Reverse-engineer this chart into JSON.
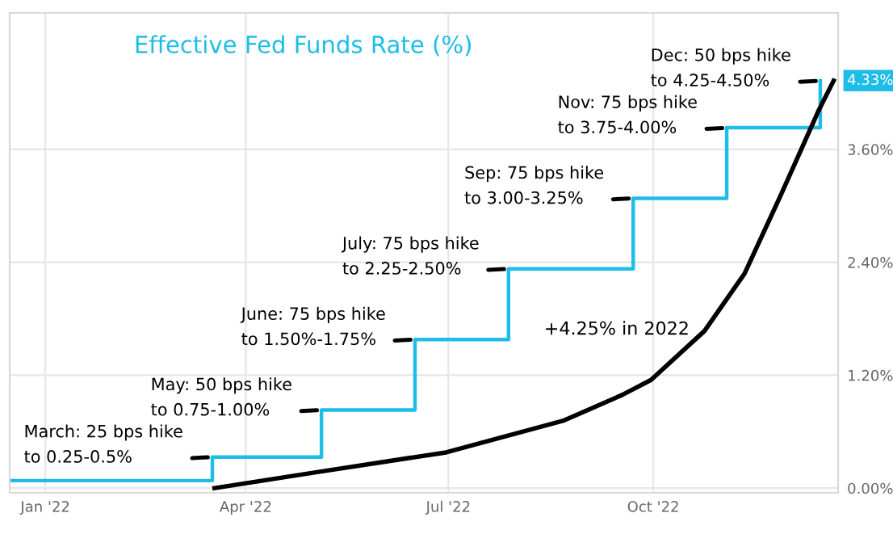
{
  "chart_data": {
    "type": "step",
    "title": "Effective Fed Funds Rate (%)",
    "series": [
      {
        "color": "#1ebde8",
        "x": [
          "2021-12-16",
          "2022-03-17",
          "2022-05-05",
          "2022-06-16",
          "2022-07-28",
          "2022-09-22",
          "2022-11-03",
          "2022-12-15"
        ],
        "values": [
          0.08,
          0.33,
          0.83,
          1.58,
          2.33,
          3.08,
          3.83,
          4.33
        ]
      },
      {
        "type": "line",
        "color": "#000000",
        "x": [
          "2022-03-18",
          "2022-05-03",
          "2022-06-30",
          "2022-08-22",
          "2022-09-17",
          "2022-09-30",
          "2022-10-24",
          "2022-11-11",
          "2022-11-27",
          "2022-12-14",
          "2022-12-21"
        ],
        "values": [
          0.0,
          0.17,
          0.38,
          0.72,
          0.99,
          1.15,
          1.67,
          2.28,
          3.1,
          4.0,
          4.33
        ]
      }
    ],
    "annotations": [
      {
        "text": "March: 25 bps hike\nto 0.25-0.5%",
        "x": "2022-03-17",
        "y": 0.33
      },
      {
        "text": "May: 50 bps hike\nto 0.75-1.00%",
        "x": "2022-05-05",
        "y": 0.83
      },
      {
        "text": "June: 75 bps hike\nto 1.50%-1.75%",
        "x": "2022-06-16",
        "y": 1.58
      },
      {
        "text": "July: 75 bps hike\nto 2.25-2.50%",
        "x": "2022-07-28",
        "y": 2.33
      },
      {
        "text": "Sep: 75 bps hike\nto 3.00-3.25%",
        "x": "2022-09-22",
        "y": 3.08
      },
      {
        "text": "Nov: 75 bps hike\nto 3.75-4.00%",
        "x": "2022-11-03",
        "y": 3.83
      },
      {
        "text": "Dec: 50 bps hike\nto 4.25-4.50%",
        "x": "2022-12-15",
        "y": 4.33
      },
      "+4.25% in 2022",
      {
        "text": "4.33%",
        "x": "2022-12-15",
        "y": 4.33
      }
    ],
    "xlim": [
      "2021-12-16",
      "2022-12-23"
    ],
    "xticks": [
      {
        "value": "2022-01-01",
        "label": "Jan '22"
      },
      {
        "value": "2022-04-01",
        "label": "Apr '22"
      },
      {
        "value": "2022-07-01",
        "label": "Jul '22"
      },
      {
        "value": "2022-10-01",
        "label": "Oct '22"
      }
    ],
    "ylim": [
      -0.05,
      5.05
    ],
    "yticks": [
      {
        "value": 0,
        "label": "0.00%"
      },
      {
        "value": 1.2,
        "label": "1.20%"
      },
      {
        "value": 2.4,
        "label": "2.40%"
      },
      {
        "value": 3.6,
        "label": "3.60%"
      }
    ],
    "grid": true,
    "marker": "none",
    "line_style": "solid"
  }
}
